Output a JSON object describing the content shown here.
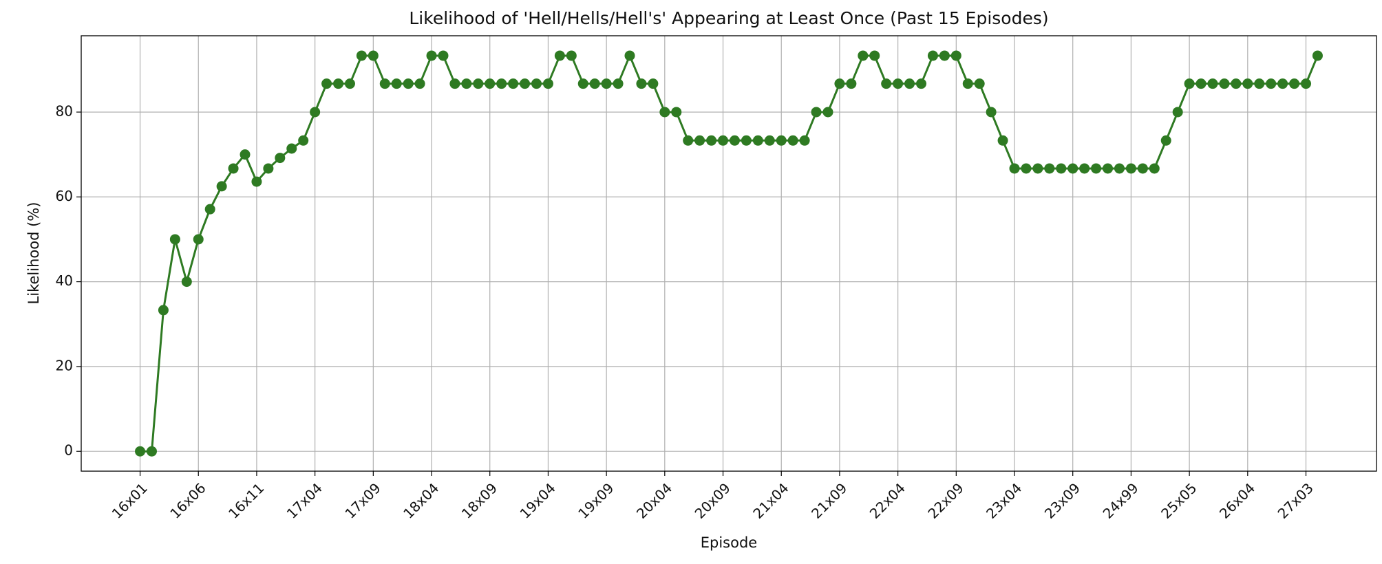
{
  "chart_data": {
    "type": "line",
    "title": "Likelihood of 'Hell/Hells/Hell's' Appearing at Least Once (Past 15 Episodes)",
    "x_label": "Episode",
    "y_label": "Likelihood (%)",
    "categories": [
      "16x01",
      null,
      null,
      null,
      null,
      "16x06",
      null,
      null,
      null,
      null,
      "16x11",
      null,
      null,
      null,
      null,
      "17x04",
      null,
      null,
      null,
      null,
      "17x09",
      null,
      null,
      null,
      null,
      "18x04",
      null,
      null,
      null,
      null,
      "18x09",
      null,
      null,
      null,
      null,
      "19x04",
      null,
      null,
      null,
      null,
      "19x09",
      null,
      null,
      null,
      null,
      "20x04",
      null,
      null,
      null,
      null,
      "20x09",
      null,
      null,
      null,
      null,
      "21x04",
      null,
      null,
      null,
      null,
      "21x09",
      null,
      null,
      null,
      null,
      "22x04",
      null,
      null,
      null,
      null,
      "22x09",
      null,
      null,
      null,
      null,
      "23x04",
      null,
      null,
      null,
      null,
      "23x09",
      null,
      null,
      null,
      null,
      "24x99",
      null,
      null,
      null,
      null,
      "25x05",
      null,
      null,
      null,
      null,
      "26x04",
      null,
      null,
      null,
      null,
      "27x03",
      null
    ],
    "series": [
      {
        "color": "#2e7a22",
        "values": [
          0,
          0,
          33.3,
          50,
          40,
          50,
          57.1,
          62.5,
          66.7,
          70,
          63.6,
          66.7,
          69.2,
          71.4,
          73.3,
          80,
          86.7,
          86.7,
          86.7,
          93.3,
          93.3,
          86.7,
          86.7,
          86.7,
          86.7,
          93.3,
          93.3,
          86.7,
          86.7,
          86.7,
          86.7,
          86.7,
          86.7,
          86.7,
          86.7,
          86.7,
          93.3,
          93.3,
          86.7,
          86.7,
          86.7,
          86.7,
          93.3,
          86.7,
          86.7,
          80,
          80,
          73.3,
          73.3,
          73.3,
          73.3,
          73.3,
          73.3,
          73.3,
          73.3,
          73.3,
          73.3,
          73.3,
          80,
          80,
          86.7,
          86.7,
          93.3,
          93.3,
          86.7,
          86.7,
          86.7,
          86.7,
          93.3,
          93.3,
          93.3,
          86.7,
          86.7,
          80,
          73.3,
          66.7,
          66.7,
          66.7,
          66.7,
          66.7,
          66.7,
          66.7,
          66.7,
          66.7,
          66.7,
          66.7,
          66.7,
          66.7,
          73.3,
          80,
          86.7,
          86.7,
          86.7,
          86.7,
          86.7,
          86.7,
          86.7,
          86.7,
          86.7,
          86.7,
          86.7,
          93.3
        ]
      }
    ],
    "ylim": [
      -4.67,
      98
    ],
    "yticks": [
      0,
      20,
      40,
      60,
      80
    ],
    "grid": true,
    "marker": true
  }
}
